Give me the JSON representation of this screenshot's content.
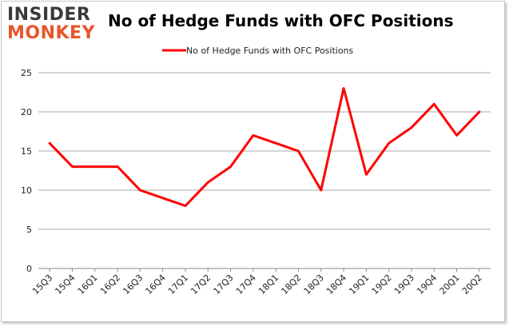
{
  "brand": {
    "line1": "INSIDER",
    "line2": "MONKEY"
  },
  "chart_data": {
    "type": "line",
    "title": "No of Hedge Funds with OFC Positions",
    "xlabel": "",
    "ylabel": "",
    "categories": [
      "15Q3",
      "15Q4",
      "16Q1",
      "16Q2",
      "16Q3",
      "16Q4",
      "17Q1",
      "17Q2",
      "17Q3",
      "17Q4",
      "18Q1",
      "18Q2",
      "18Q3",
      "18Q4",
      "19Q1",
      "19Q2",
      "19Q3",
      "19Q4",
      "20Q1",
      "20Q2"
    ],
    "series": [
      {
        "name": "No of Hedge Funds with OFC Positions",
        "values": [
          16,
          13,
          13,
          13,
          10,
          9,
          8,
          11,
          13,
          17,
          16,
          15,
          10,
          23,
          12,
          16,
          18,
          21,
          17,
          20
        ],
        "color": "#ff0000"
      }
    ],
    "ylim": [
      0,
      25
    ],
    "yticks": [
      0,
      5,
      10,
      15,
      20,
      25
    ],
    "grid": true,
    "legend": "top-center"
  }
}
